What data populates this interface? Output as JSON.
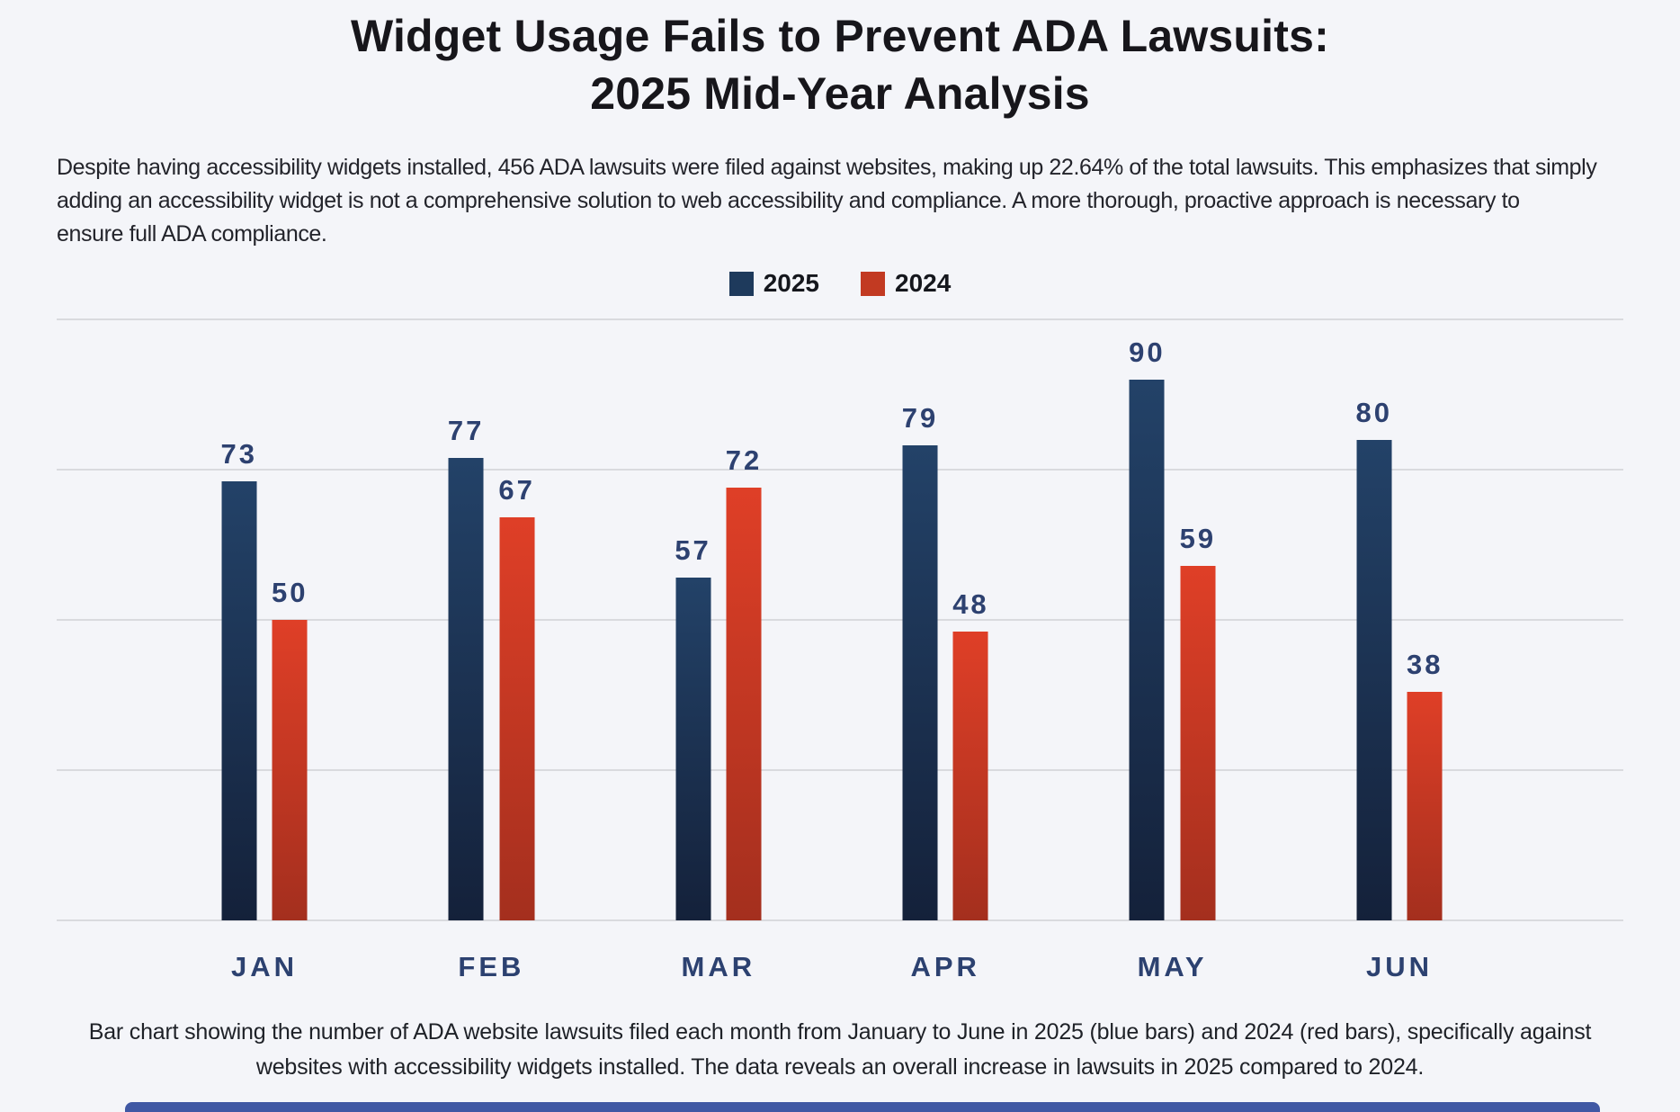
{
  "page": {
    "title_line1": "Widget Usage Fails to Prevent ADA Lawsuits:",
    "title_line2": "2025 Mid-Year Analysis",
    "intro_lines": [
      "Despite having accessibility widgets installed, 456 ADA lawsuits were filed against websites, making up 22.64% of the total lawsuits. This emphasizes that simply",
      "adding an accessibility widget is not a comprehensive solution to web accessibility and compliance. A more thorough, proactive approach is necessary to",
      "ensure full ADA compliance."
    ],
    "caption_lines": [
      "Bar chart showing the number of ADA website lawsuits filed each month from January to June in 2025 (blue bars) and 2024 (red bars), specifically against",
      "websites with accessibility widgets installed. The data reveals an overall increase in lawsuits in 2025 compared to 2024."
    ]
  },
  "legend": {
    "items": [
      {
        "label": "2025",
        "color": "#1e3a5c"
      },
      {
        "label": "2024",
        "color": "#c23a22"
      }
    ]
  },
  "chart_data": {
    "type": "bar",
    "title": "Widget Usage Fails to Prevent ADA Lawsuits: 2025 Mid-Year Analysis",
    "categories": [
      "JAN",
      "FEB",
      "MAR",
      "APR",
      "MAY",
      "JUN"
    ],
    "series": [
      {
        "name": "2025",
        "values": [
          73,
          77,
          57,
          79,
          90,
          80
        ],
        "color_top": "#234268",
        "color_bottom": "#14213a"
      },
      {
        "name": "2024",
        "values": [
          50,
          67,
          72,
          48,
          59,
          38
        ],
        "color_top": "#df3f27",
        "color_bottom": "#a42f1e"
      }
    ],
    "xlabel": "",
    "ylabel": "",
    "ylim": [
      0,
      100
    ],
    "gridline_values": [
      0,
      25,
      50,
      75,
      100
    ],
    "grid": true,
    "y_tick_labels_visible": false,
    "value_labels": true,
    "legend_position": "top-center",
    "value_label_color": "#2d4170",
    "axis_label_color": "#2c4170",
    "gridline_color": "#d9dade",
    "background_color": "#f4f5f9"
  }
}
